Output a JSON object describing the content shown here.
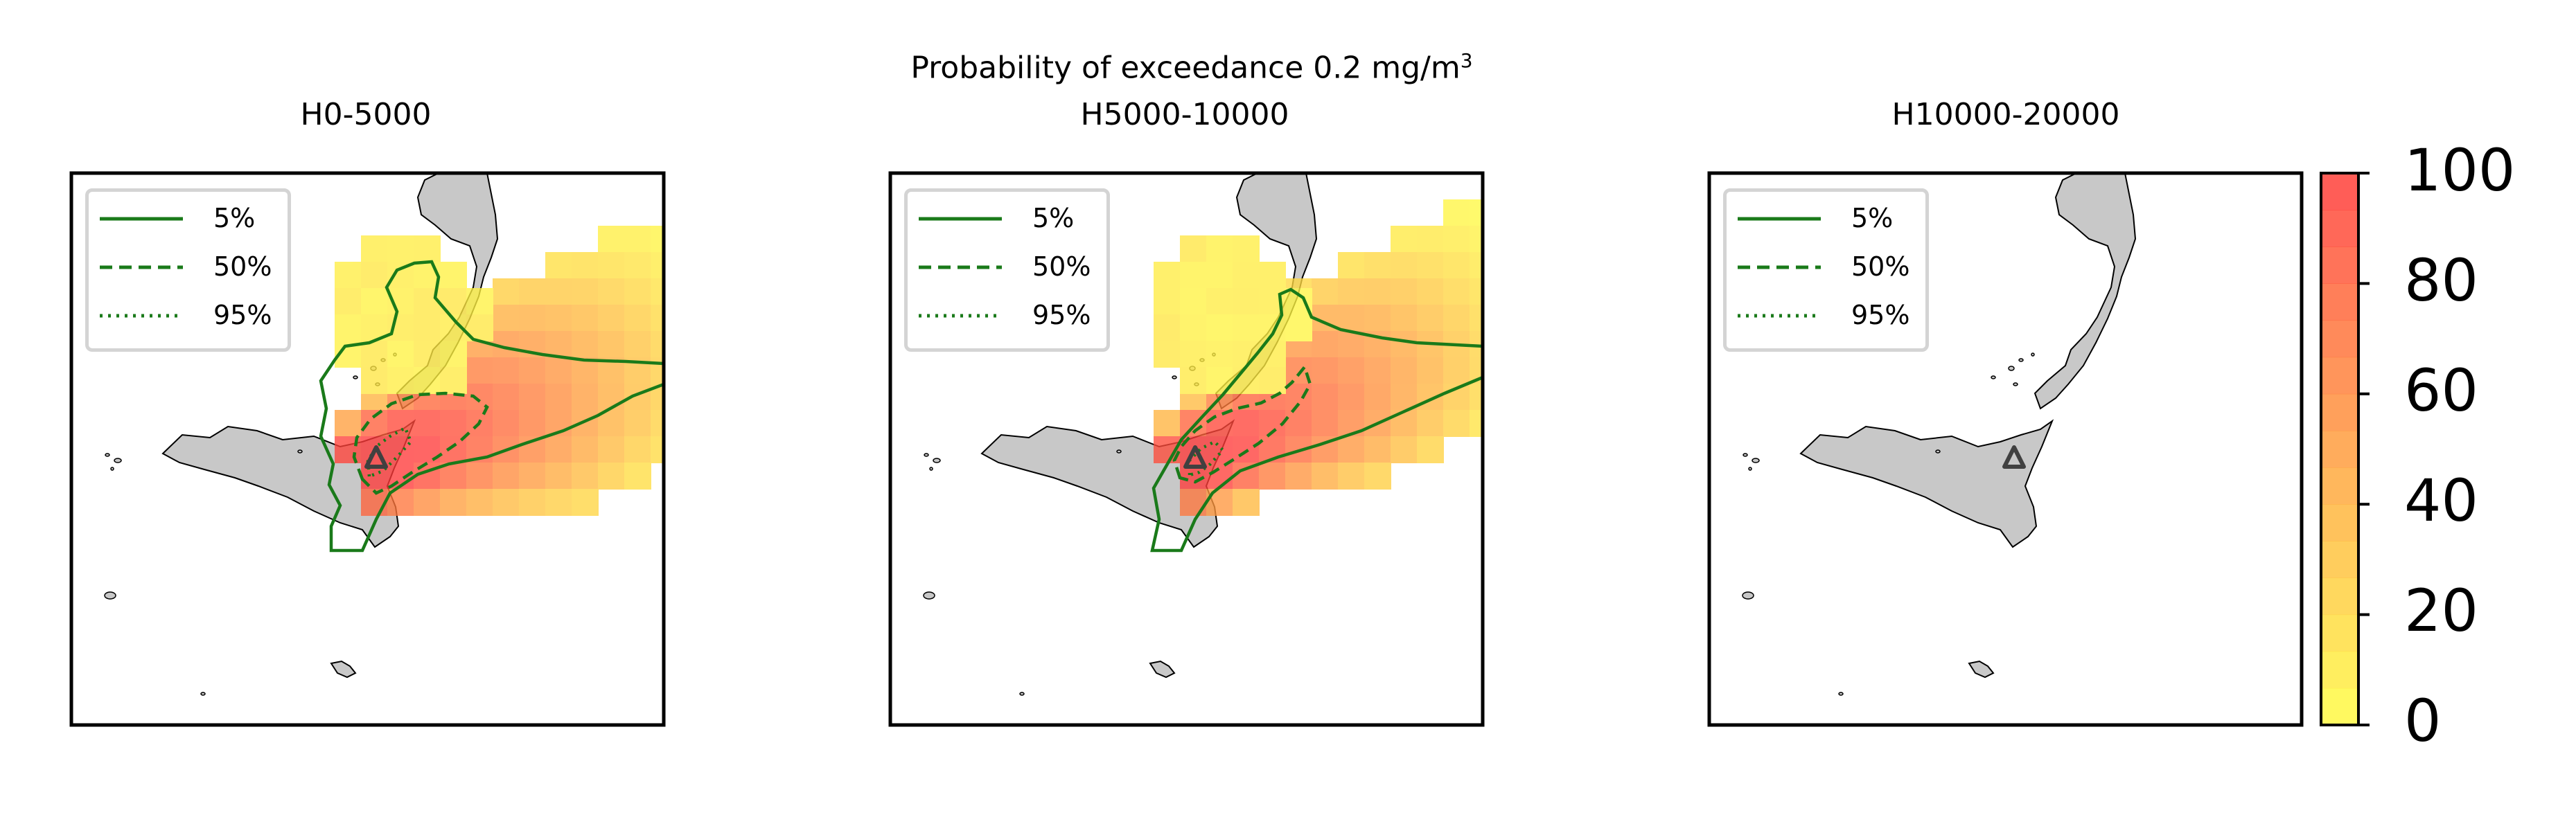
{
  "title_main": "Probability of exceedance 0.2 mg/m",
  "title_sup": "3",
  "colors": {
    "low": "#ffff44",
    "high": "#ff3a3a",
    "land": "#c8c8c8",
    "contour": "#1a7a1a",
    "vent": "#404040"
  },
  "legend": {
    "items": [
      {
        "label": "5%",
        "style": "solid"
      },
      {
        "label": "50%",
        "style": "dashed"
      },
      {
        "label": "95%",
        "style": "dotted"
      }
    ]
  },
  "colorbar": {
    "min": 0,
    "max": 100,
    "levels": 15,
    "ticks": [
      "0",
      "20",
      "40",
      "60",
      "80",
      "100"
    ]
  },
  "chart_data": [
    {
      "type": "heatmap",
      "title": "H0-5000",
      "series": [
        {
          "name": "5%",
          "style": "solid"
        },
        {
          "name": "50%",
          "style": "dashed"
        },
        {
          "name": "95%",
          "style": "dotted"
        }
      ],
      "value_range": [
        0,
        100
      ],
      "max_probability": 100
    },
    {
      "type": "heatmap",
      "title": "H5000-10000",
      "series": [
        {
          "name": "5%",
          "style": "solid"
        },
        {
          "name": "50%",
          "style": "dashed"
        },
        {
          "name": "95%",
          "style": "dotted"
        }
      ],
      "value_range": [
        0,
        100
      ],
      "max_probability": 100
    },
    {
      "type": "heatmap",
      "title": "H10000-20000",
      "series": [
        {
          "name": "5%",
          "style": "solid"
        },
        {
          "name": "50%",
          "style": "dashed"
        },
        {
          "name": "95%",
          "style": "dotted"
        }
      ],
      "value_range": [
        0,
        100
      ],
      "max_probability": 0
    }
  ]
}
